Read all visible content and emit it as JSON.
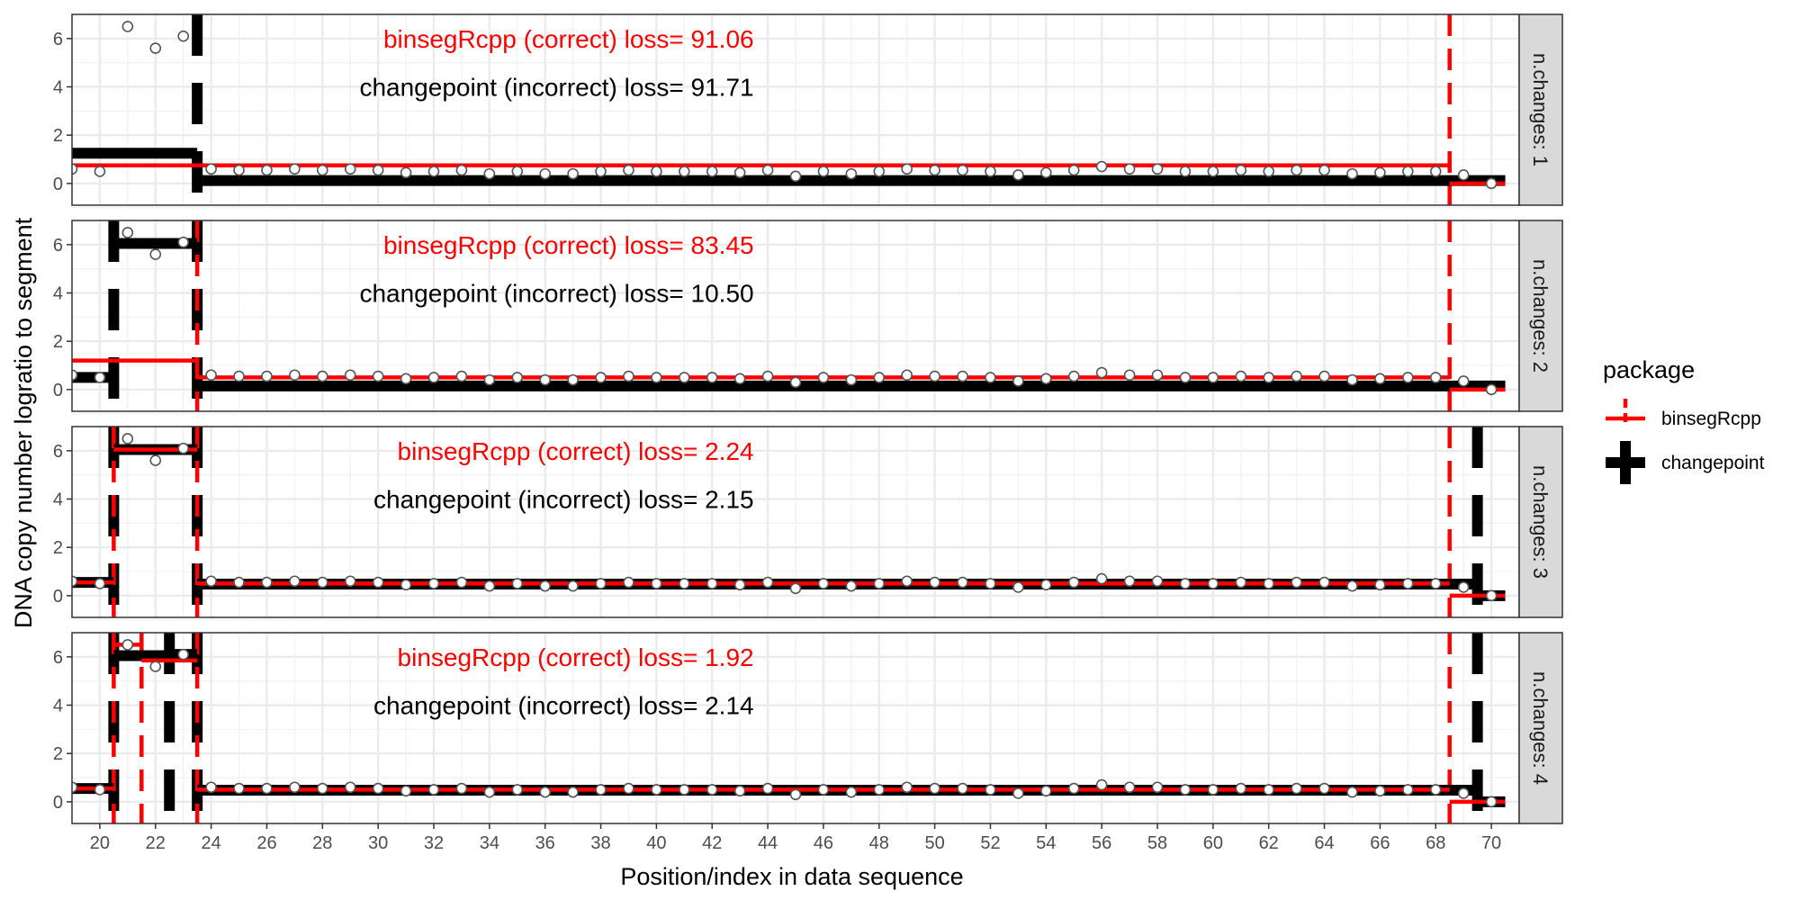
{
  "chart_data": {
    "type": "line",
    "xlabel": "Position/index in data sequence",
    "ylabel": "DNA copy number logratio to segment",
    "xlim": [
      19,
      71
    ],
    "ylim": [
      -0.9,
      7.0
    ],
    "x_ticks": [
      20,
      22,
      24,
      26,
      28,
      30,
      32,
      34,
      36,
      38,
      40,
      42,
      44,
      46,
      48,
      50,
      52,
      54,
      56,
      58,
      60,
      62,
      64,
      66,
      68,
      70
    ],
    "y_ticks": [
      0,
      2,
      4,
      6
    ],
    "grid": true,
    "legend": {
      "title": "package",
      "placement": "right",
      "entries": [
        {
          "name": "binsegRcpp",
          "color": "#ff0000"
        },
        {
          "name": "changepoint",
          "color": "#000000"
        }
      ]
    },
    "points": [
      {
        "x": 19,
        "y": 0.6
      },
      {
        "x": 20,
        "y": 0.5
      },
      {
        "x": 21,
        "y": 6.5
      },
      {
        "x": 22,
        "y": 5.6
      },
      {
        "x": 23,
        "y": 6.1
      },
      {
        "x": 24,
        "y": 0.6
      },
      {
        "x": 25,
        "y": 0.55
      },
      {
        "x": 26,
        "y": 0.55
      },
      {
        "x": 27,
        "y": 0.6
      },
      {
        "x": 28,
        "y": 0.55
      },
      {
        "x": 29,
        "y": 0.6
      },
      {
        "x": 30,
        "y": 0.55
      },
      {
        "x": 31,
        "y": 0.45
      },
      {
        "x": 32,
        "y": 0.5
      },
      {
        "x": 33,
        "y": 0.55
      },
      {
        "x": 34,
        "y": 0.4
      },
      {
        "x": 35,
        "y": 0.5
      },
      {
        "x": 36,
        "y": 0.4
      },
      {
        "x": 37,
        "y": 0.4
      },
      {
        "x": 38,
        "y": 0.5
      },
      {
        "x": 39,
        "y": 0.55
      },
      {
        "x": 40,
        "y": 0.5
      },
      {
        "x": 41,
        "y": 0.5
      },
      {
        "x": 42,
        "y": 0.5
      },
      {
        "x": 43,
        "y": 0.45
      },
      {
        "x": 44,
        "y": 0.55
      },
      {
        "x": 45,
        "y": 0.3
      },
      {
        "x": 46,
        "y": 0.5
      },
      {
        "x": 47,
        "y": 0.4
      },
      {
        "x": 48,
        "y": 0.5
      },
      {
        "x": 49,
        "y": 0.6
      },
      {
        "x": 50,
        "y": 0.55
      },
      {
        "x": 51,
        "y": 0.55
      },
      {
        "x": 52,
        "y": 0.5
      },
      {
        "x": 53,
        "y": 0.35
      },
      {
        "x": 54,
        "y": 0.45
      },
      {
        "x": 55,
        "y": 0.55
      },
      {
        "x": 56,
        "y": 0.7
      },
      {
        "x": 57,
        "y": 0.6
      },
      {
        "x": 58,
        "y": 0.6
      },
      {
        "x": 59,
        "y": 0.5
      },
      {
        "x": 60,
        "y": 0.5
      },
      {
        "x": 61,
        "y": 0.55
      },
      {
        "x": 62,
        "y": 0.5
      },
      {
        "x": 63,
        "y": 0.55
      },
      {
        "x": 64,
        "y": 0.55
      },
      {
        "x": 65,
        "y": 0.4
      },
      {
        "x": 66,
        "y": 0.45
      },
      {
        "x": 67,
        "y": 0.5
      },
      {
        "x": 68,
        "y": 0.5
      },
      {
        "x": 69,
        "y": 0.35
      },
      {
        "x": 70,
        "y": 0.0
      }
    ],
    "panels": [
      {
        "strip": "n.changes: 1",
        "labels": [
          {
            "package": "binsegRcpp",
            "text": "binsegRcpp (correct) loss= 91.06"
          },
          {
            "package": "changepoint",
            "text": "changepoint (incorrect) loss= 91.71"
          }
        ],
        "segments": {
          "binsegRcpp": [
            {
              "x_start": 18.5,
              "x_end": 68.5,
              "y": 0.75
            },
            {
              "x_start": 68.5,
              "y_end": 0,
              "x_end": 70.5,
              "y": 0.0
            }
          ],
          "changepoint": [
            {
              "x_start": 18.5,
              "x_end": 23.5,
              "y": 1.25
            },
            {
              "x_start": 23.5,
              "x_end": 70.5,
              "y": 0.12
            }
          ]
        },
        "changepoints": {
          "binsegRcpp": [
            68.5
          ],
          "changepoint": [
            23.5
          ]
        }
      },
      {
        "strip": "n.changes: 2",
        "labels": [
          {
            "package": "binsegRcpp",
            "text": "binsegRcpp (correct) loss= 83.45"
          },
          {
            "package": "changepoint",
            "text": "changepoint (incorrect) loss= 10.50"
          }
        ],
        "segments": {
          "binsegRcpp": [
            {
              "x_start": 18.5,
              "x_end": 23.5,
              "y": 1.2
            },
            {
              "x_start": 23.5,
              "x_end": 68.5,
              "y": 0.5
            },
            {
              "x_start": 68.5,
              "x_end": 70.5,
              "y": 0.0
            }
          ],
          "changepoint": [
            {
              "x_start": 18.5,
              "x_end": 20.5,
              "y": 0.5
            },
            {
              "x_start": 20.5,
              "x_end": 23.5,
              "y": 6.05
            },
            {
              "x_start": 23.5,
              "x_end": 70.5,
              "y": 0.15
            }
          ]
        },
        "changepoints": {
          "binsegRcpp": [
            23.5,
            68.5
          ],
          "changepoint": [
            20.5,
            23.5
          ]
        }
      },
      {
        "strip": "n.changes: 3",
        "labels": [
          {
            "package": "binsegRcpp",
            "text": "binsegRcpp (correct) loss= 2.24"
          },
          {
            "package": "changepoint",
            "text": "changepoint (incorrect) loss= 2.15"
          }
        ],
        "segments": {
          "binsegRcpp": [
            {
              "x_start": 18.5,
              "x_end": 20.5,
              "y": 0.55
            },
            {
              "x_start": 20.5,
              "x_end": 23.5,
              "y": 6.05
            },
            {
              "x_start": 23.5,
              "x_end": 68.5,
              "y": 0.5
            },
            {
              "x_start": 68.5,
              "x_end": 70.5,
              "y": 0.0
            }
          ],
          "changepoint": [
            {
              "x_start": 18.5,
              "x_end": 20.5,
              "y": 0.55
            },
            {
              "x_start": 20.5,
              "x_end": 23.5,
              "y": 6.05
            },
            {
              "x_start": 23.5,
              "x_end": 69.5,
              "y": 0.48
            },
            {
              "x_start": 69.5,
              "x_end": 70.5,
              "y": 0.0
            }
          ]
        },
        "changepoints": {
          "binsegRcpp": [
            20.5,
            23.5,
            68.5
          ],
          "changepoint": [
            20.5,
            23.5,
            69.5
          ]
        }
      },
      {
        "strip": "n.changes: 4",
        "labels": [
          {
            "package": "binsegRcpp",
            "text": "binsegRcpp (correct) loss= 1.92"
          },
          {
            "package": "changepoint",
            "text": "changepoint (incorrect) loss= 2.14"
          }
        ],
        "segments": {
          "binsegRcpp": [
            {
              "x_start": 18.5,
              "x_end": 20.5,
              "y": 0.55
            },
            {
              "x_start": 20.5,
              "x_end": 21.5,
              "y": 6.5
            },
            {
              "x_start": 21.5,
              "x_end": 23.5,
              "y": 5.85
            },
            {
              "x_start": 23.5,
              "x_end": 68.5,
              "y": 0.5
            },
            {
              "x_start": 68.5,
              "x_end": 70.5,
              "y": 0.0
            }
          ],
          "changepoint": [
            {
              "x_start": 18.5,
              "x_end": 20.5,
              "y": 0.55
            },
            {
              "x_start": 20.5,
              "x_end": 22.5,
              "y": 6.05
            },
            {
              "x_start": 22.5,
              "x_end": 23.5,
              "y": 6.1
            },
            {
              "x_start": 23.5,
              "x_end": 69.5,
              "y": 0.48
            },
            {
              "x_start": 69.5,
              "x_end": 70.5,
              "y": 0.0
            }
          ]
        },
        "changepoints": {
          "binsegRcpp": [
            20.5,
            21.5,
            23.5,
            68.5
          ],
          "changepoint": [
            20.5,
            22.5,
            23.5,
            69.5
          ]
        }
      }
    ]
  }
}
